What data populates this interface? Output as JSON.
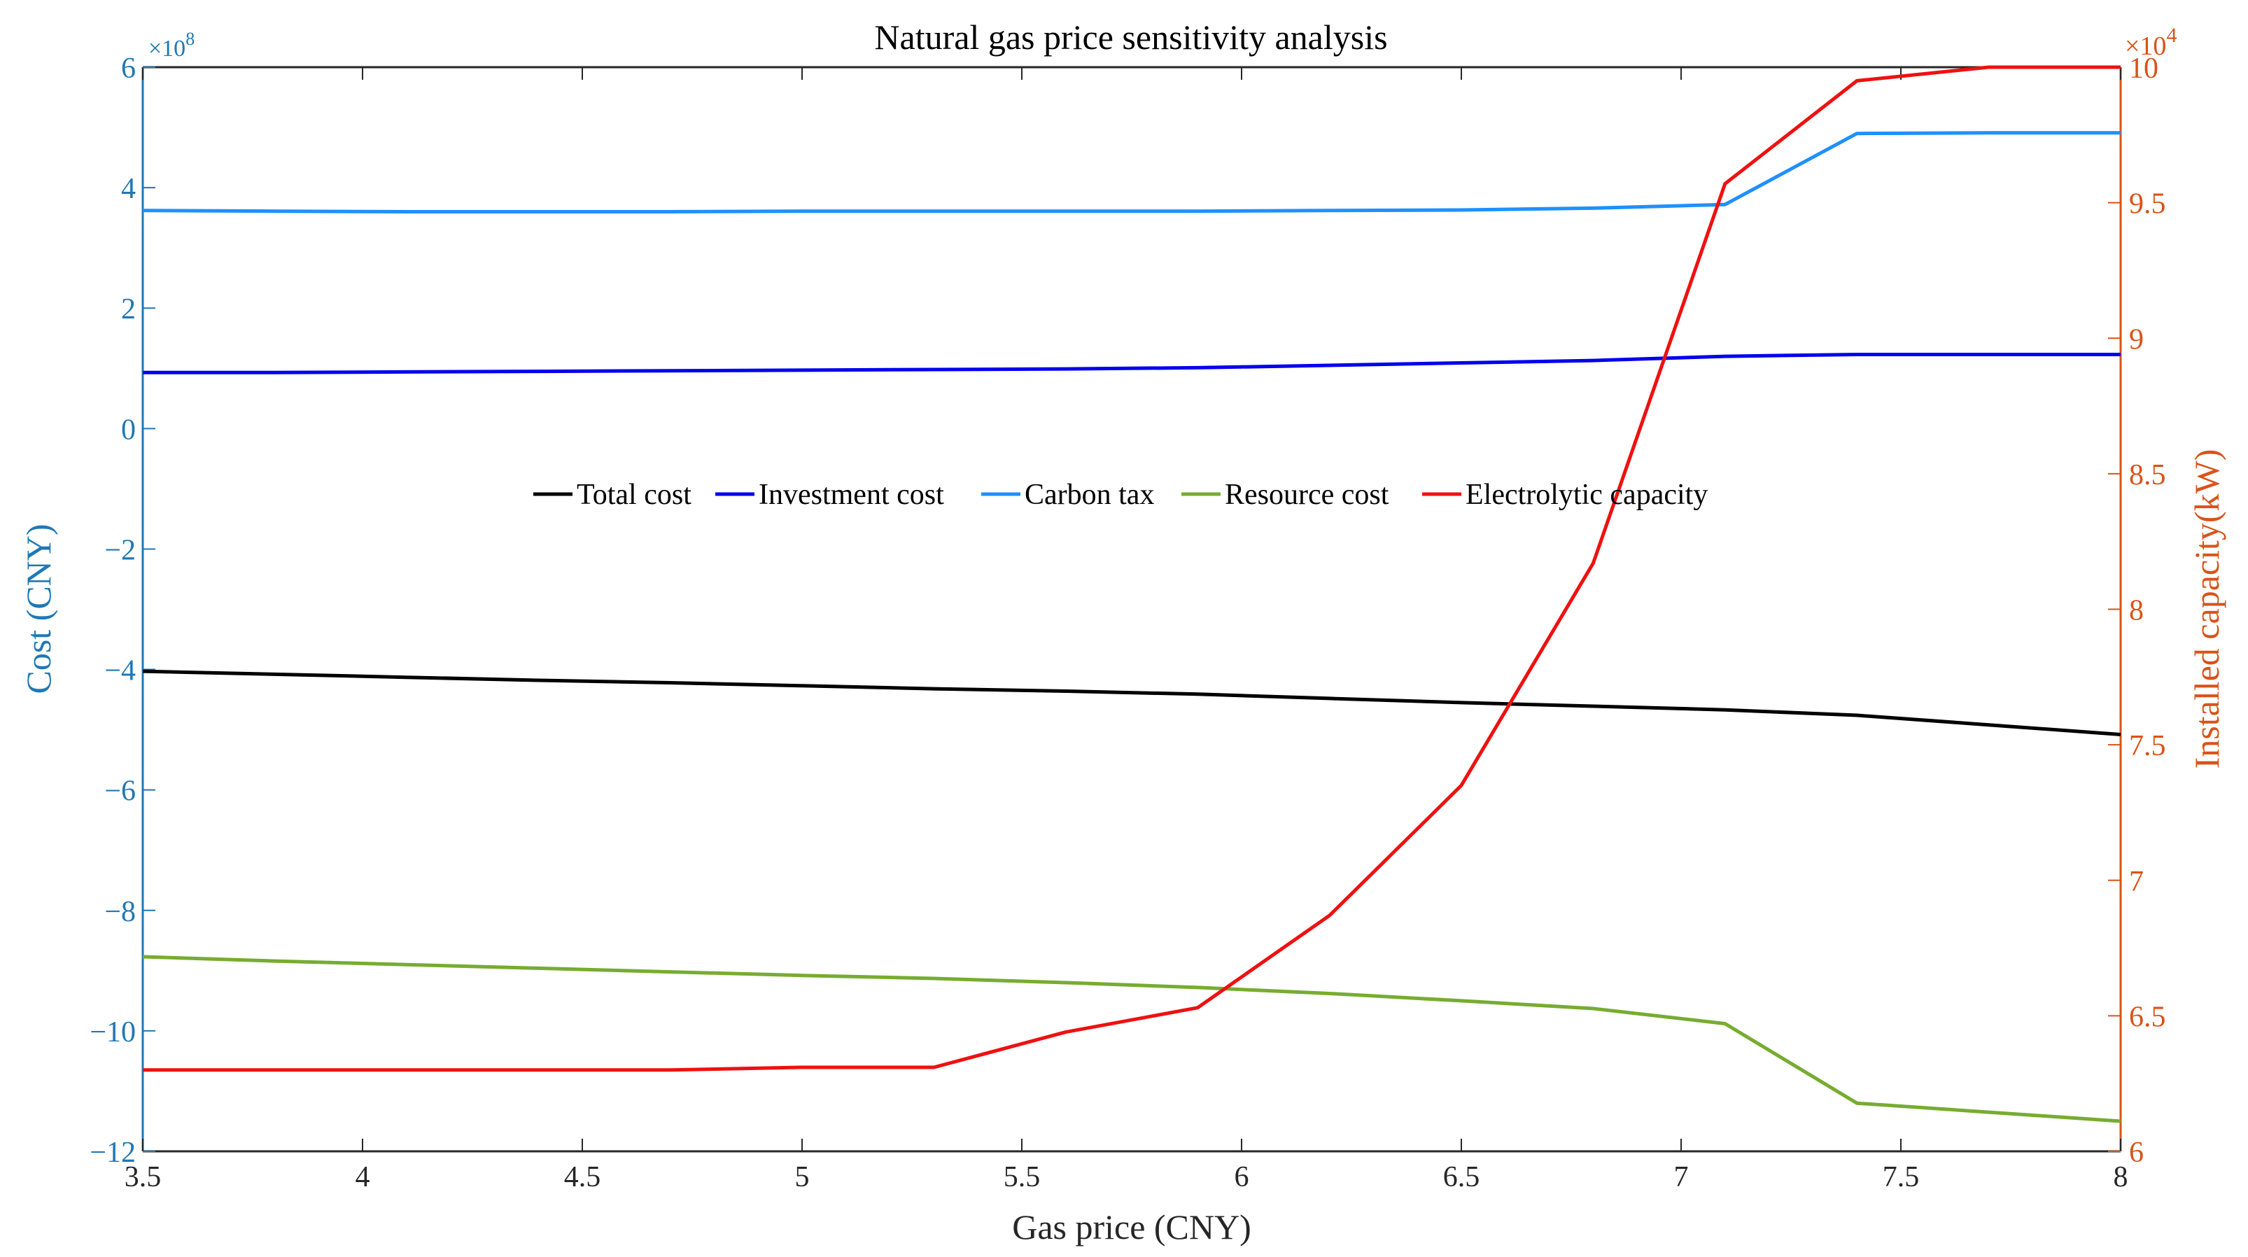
{
  "chart_data": {
    "type": "line",
    "title": "Natural gas price sensitivity analysis",
    "xlabel": "Gas price (CNY)",
    "ylabel_left": "Cost (CNY)",
    "ylabel_right": "Installed capacity(kW)",
    "xlim": [
      3.5,
      8
    ],
    "ylim_left": [
      -12,
      6
    ],
    "ylim_right": [
      6,
      10
    ],
    "left_exponent": "×10",
    "left_exponent_power": "8",
    "right_exponent": "×10",
    "right_exponent_power": "4",
    "x_ticks": [
      "3.5",
      "4",
      "4.5",
      "5",
      "5.5",
      "6",
      "6.5",
      "7",
      "7.5",
      "8"
    ],
    "y_left_ticks": [
      "6",
      "4",
      "2",
      "0",
      "−2",
      "−4",
      "−6",
      "−8",
      "−10",
      "−12"
    ],
    "y_right_ticks": [
      "10",
      "9.5",
      "9",
      "8.5",
      "8",
      "7.5",
      "7",
      "6.5",
      "6"
    ],
    "legend_position": "center",
    "x": [
      3.5,
      3.8,
      4.1,
      4.4,
      4.7,
      5.0,
      5.3,
      5.6,
      5.9,
      6.2,
      6.5,
      6.8,
      7.1,
      7.4,
      7.7,
      8.0
    ],
    "series": [
      {
        "name": "Total cost",
        "axis": "left",
        "color": "#000000",
        "values": [
          -4.03,
          -4.08,
          -4.13,
          -4.18,
          -4.22,
          -4.27,
          -4.32,
          -4.36,
          -4.41,
          -4.48,
          -4.55,
          -4.61,
          -4.67,
          -4.76,
          -4.92,
          -5.08
        ]
      },
      {
        "name": "Investment cost",
        "axis": "left",
        "color": "#0000ee",
        "values": [
          0.93,
          0.93,
          0.94,
          0.95,
          0.96,
          0.97,
          0.98,
          0.99,
          1.01,
          1.05,
          1.09,
          1.13,
          1.2,
          1.23,
          1.23,
          1.23
        ]
      },
      {
        "name": "Carbon tax",
        "axis": "left",
        "color": "#1e90ff",
        "values": [
          3.62,
          3.61,
          3.6,
          3.6,
          3.6,
          3.61,
          3.61,
          3.61,
          3.61,
          3.62,
          3.63,
          3.66,
          3.72,
          4.9,
          4.91,
          4.91
        ]
      },
      {
        "name": "Resource cost",
        "axis": "left",
        "color": "#77ac30",
        "values": [
          -8.77,
          -8.84,
          -8.9,
          -8.96,
          -9.02,
          -9.08,
          -9.13,
          -9.2,
          -9.28,
          -9.38,
          -9.5,
          -9.63,
          -9.88,
          -11.2,
          -11.35,
          -11.5
        ]
      },
      {
        "name": "Electrolytic capacity",
        "axis": "right",
        "color": "#ee1111",
        "values": [
          6.3,
          6.3,
          6.3,
          6.3,
          6.3,
          6.31,
          6.31,
          6.44,
          6.53,
          6.87,
          7.35,
          8.17,
          9.57,
          9.95,
          10.0,
          10.0
        ]
      }
    ]
  }
}
